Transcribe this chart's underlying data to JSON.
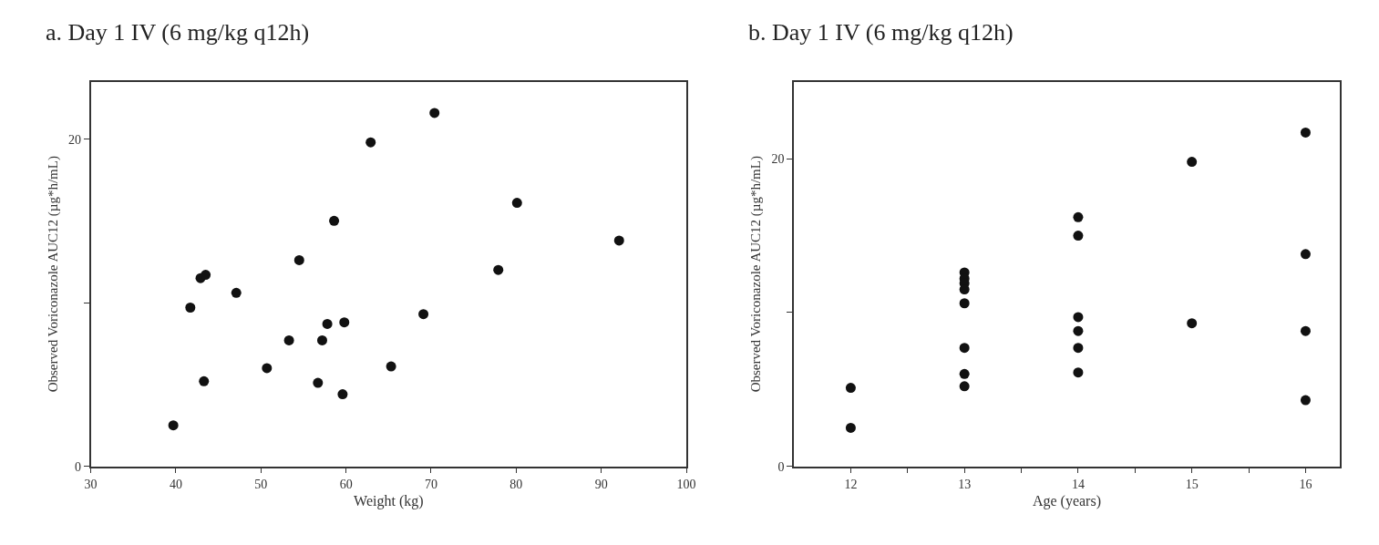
{
  "chart_data": [
    {
      "type": "scatter",
      "title": "a. Day 1 IV (6 mg/kg q12h)",
      "xlabel": "Weight (kg)",
      "ylabel": "Observed Voriconazole AUC12 (µg*h/mL)",
      "marker": "circle",
      "color": "#111111",
      "x": [
        39.7,
        41.7,
        42.9,
        43.5,
        43.3,
        47.1,
        50.7,
        53.3,
        54.5,
        56.7,
        57.2,
        57.8,
        58.6,
        59.6,
        59.8,
        62.9,
        65.3,
        69.1,
        70.4,
        77.9,
        80.1,
        92.1
      ],
      "values": [
        2.5,
        9.7,
        11.5,
        11.7,
        5.2,
        10.6,
        6.0,
        7.7,
        12.6,
        5.1,
        7.7,
        8.7,
        15.0,
        4.4,
        8.8,
        19.8,
        6.1,
        9.3,
        21.6,
        12.0,
        16.1,
        13.8
      ],
      "xlim": [
        30,
        100
      ],
      "xticks": [
        30,
        40,
        50,
        60,
        70,
        80,
        90,
        100
      ],
      "ylim": [
        0,
        23.5
      ],
      "yticks": [
        0,
        {
          "value": 10,
          "label": null
        },
        20
      ]
    },
    {
      "type": "scatter",
      "title": "b. Day 1 IV (6 mg/kg q12h)",
      "xlabel": "Age (years)",
      "ylabel": "Observed Voriconazole AUC12 (µg*h/mL)",
      "marker": "circle",
      "color": "#111111",
      "x": [
        12,
        12,
        13,
        13,
        13,
        13,
        13,
        13,
        13,
        13,
        14,
        14,
        14,
        14,
        14,
        14,
        15,
        15,
        16,
        16,
        16,
        16
      ],
      "values": [
        5.1,
        2.5,
        12.6,
        12.2,
        11.9,
        11.5,
        10.6,
        7.7,
        6.0,
        5.2,
        16.2,
        15.0,
        9.7,
        8.8,
        7.7,
        6.1,
        19.8,
        9.3,
        21.7,
        13.8,
        8.8,
        4.3
      ],
      "xlim": [
        11.5,
        16.3
      ],
      "xticks": [
        12,
        {
          "value": 12.5,
          "label": null
        },
        13,
        {
          "value": 13.5,
          "label": null
        },
        14,
        {
          "value": 14.5,
          "label": null
        },
        15,
        {
          "value": 15.5,
          "label": null
        },
        16
      ],
      "ylim": [
        0,
        25
      ],
      "yticks": [
        0,
        {
          "value": 10,
          "label": null
        },
        20
      ]
    }
  ]
}
